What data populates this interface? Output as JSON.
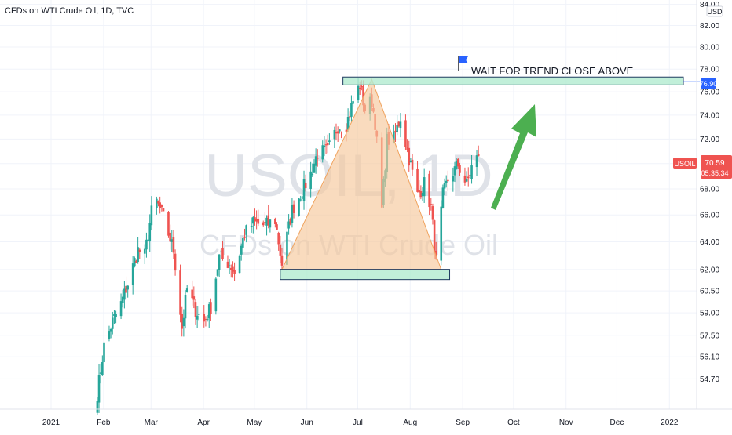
{
  "header": {
    "symbol_description": "CFDs on WTI Crude Oil, 1D, TVC",
    "currency_badge": "USD"
  },
  "watermark": {
    "symbol": "USOIL, 1D",
    "description": "CFDs on WTI Crude Oil"
  },
  "colors": {
    "up": "#26a69a",
    "down": "#ef5350",
    "arrow": "#4caf50",
    "triangle_fill": "#f6c89b",
    "triangle_stroke": "#f0a35e",
    "zone_fill": "#b2ebd0",
    "zone_stroke": "#1e3a5f",
    "price_label": "#ef5350",
    "level_label": "#2962ff",
    "flag": "#2962ff",
    "watermark": "#dfe2e8"
  },
  "annotation": {
    "text": "WAIT FOR TREND CLOSE ABOVE",
    "flag_icon": "flag-icon",
    "arrow_icon": "up-arrow-icon"
  },
  "price_scale": {
    "symbol_tag": "USOIL",
    "last_price": "70.59",
    "countdown": "05:35:34",
    "level_label": "76.90"
  },
  "chart_data": {
    "type": "candlestick",
    "title": "CFDs on WTI Crude Oil, 1D, TVC",
    "y_ticks": [
      "54.70",
      "56.10",
      "57.50",
      "59.00",
      "60.50",
      "62.00",
      "64.00",
      "66.00",
      "68.00",
      "70.00",
      "72.00",
      "74.00",
      "76.00",
      "78.00",
      "80.00",
      "82.00",
      "84.00"
    ],
    "x_ticks": [
      "2021",
      "Feb",
      "Mar",
      "Apr",
      "May",
      "Jun",
      "Jul",
      "Aug",
      "Sep",
      "Oct",
      "Nov",
      "Dec",
      "2022"
    ],
    "y_scale": "log",
    "ylim": [
      53.8,
      85.0
    ],
    "last_close": 70.59,
    "resistance_zone": [
      76.6,
      77.3
    ],
    "support_zone": [
      61.4,
      61.9
    ],
    "pattern_triangle": [
      {
        "date": "2021-05-21",
        "price": 62.0
      },
      {
        "date": "2021-07-13",
        "price": 77.1
      },
      {
        "date": "2021-08-23",
        "price": 62.0
      }
    ],
    "anchors": [
      [
        "2021-02-01",
        53.8
      ],
      [
        "2021-02-05",
        56.8
      ],
      [
        "2021-02-10",
        58.4
      ],
      [
        "2021-02-15",
        59.6
      ],
      [
        "2021-02-19",
        61.0
      ],
      [
        "2021-02-25",
        63.4
      ],
      [
        "2021-03-01",
        63.0
      ],
      [
        "2021-03-05",
        66.2
      ],
      [
        "2021-03-08",
        67.0
      ],
      [
        "2021-03-12",
        65.8
      ],
      [
        "2021-03-18",
        63.4
      ],
      [
        "2021-03-23",
        58.0
      ],
      [
        "2021-03-26",
        60.6
      ],
      [
        "2021-03-31",
        59.2
      ],
      [
        "2021-04-05",
        58.4
      ],
      [
        "2021-04-09",
        59.4
      ],
      [
        "2021-04-14",
        62.9
      ],
      [
        "2021-04-20",
        62.4
      ],
      [
        "2021-04-23",
        61.8
      ],
      [
        "2021-04-29",
        64.6
      ],
      [
        "2021-05-04",
        65.4
      ],
      [
        "2021-05-11",
        65.2
      ],
      [
        "2021-05-17",
        65.6
      ],
      [
        "2021-05-21",
        62.4
      ],
      [
        "2021-05-27",
        66.4
      ],
      [
        "2021-06-01",
        67.6
      ],
      [
        "2021-06-07",
        69.2
      ],
      [
        "2021-06-11",
        70.9
      ],
      [
        "2021-06-17",
        71.0
      ],
      [
        "2021-06-23",
        73.1
      ],
      [
        "2021-06-28",
        73.2
      ],
      [
        "2021-07-02",
        75.2
      ],
      [
        "2021-07-06",
        76.6
      ],
      [
        "2021-07-09",
        74.5
      ],
      [
        "2021-07-13",
        75.2
      ],
      [
        "2021-07-15",
        73.4
      ],
      [
        "2021-07-19",
        66.4
      ],
      [
        "2021-07-22",
        71.9
      ],
      [
        "2021-07-26",
        72.0
      ],
      [
        "2021-07-30",
        73.8
      ],
      [
        "2021-08-03",
        71.0
      ],
      [
        "2021-08-09",
        67.5
      ],
      [
        "2021-08-13",
        68.4
      ],
      [
        "2021-08-17",
        66.6
      ],
      [
        "2021-08-20",
        62.3
      ],
      [
        "2021-08-24",
        67.5
      ],
      [
        "2021-08-27",
        68.7
      ],
      [
        "2021-09-02",
        69.9
      ],
      [
        "2021-09-07",
        68.3
      ],
      [
        "2021-09-10",
        69.7
      ],
      [
        "2021-09-14",
        70.6
      ]
    ]
  }
}
